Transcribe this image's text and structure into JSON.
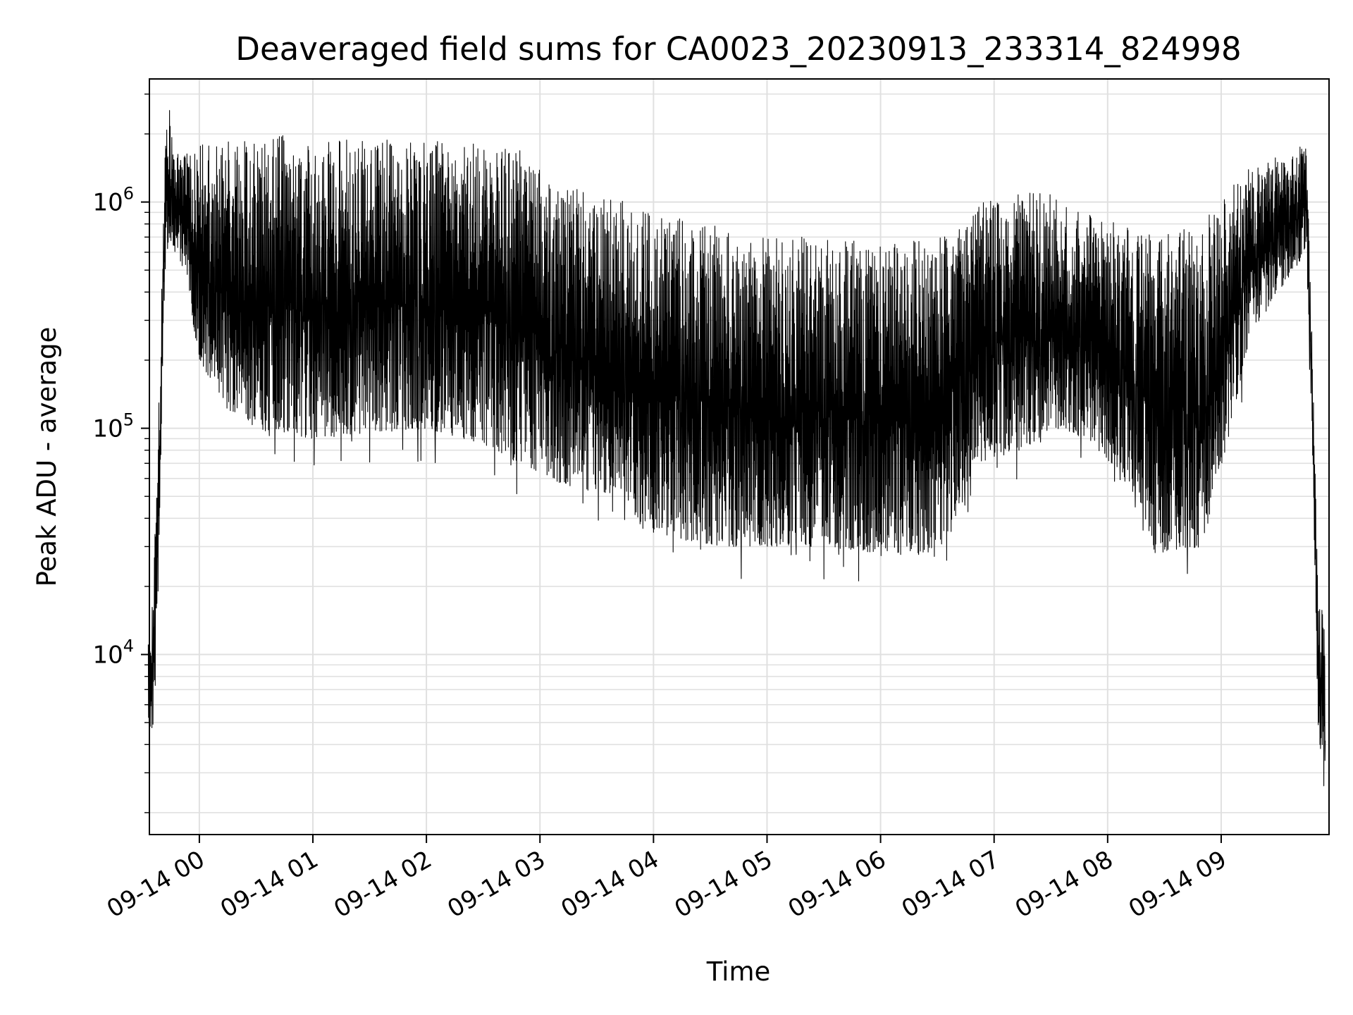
{
  "chart_data": {
    "type": "line",
    "title": "Deaveraged field sums for CA0023_20230913_233314_824998",
    "xlabel": "Time",
    "ylabel": "Peak ADU - average",
    "yscale": "log",
    "ylim": [
      1600,
      3500000
    ],
    "xlim_hours": [
      -0.44,
      9.95
    ],
    "grid": true,
    "legend": "none",
    "line_color": "#000000",
    "x_tick_labels": [
      "09-14 00",
      "09-14 01",
      "09-14 02",
      "09-14 03",
      "09-14 04",
      "09-14 05",
      "09-14 06",
      "09-14 07",
      "09-14 08",
      "09-14 09"
    ],
    "y_tick_base": "10",
    "y_tick_exponents": [
      "4",
      "5",
      "6"
    ],
    "series": [
      {
        "envelope": [
          {
            "t": "2023-09-13 23:33",
            "low": 5000,
            "high": 12000
          },
          {
            "t": "2023-09-13 23:36",
            "low": 4000,
            "high": 25000
          },
          {
            "t": "2023-09-13 23:38",
            "low": 15000,
            "high": 80000
          },
          {
            "t": "2023-09-13 23:40",
            "low": 100000,
            "high": 400000
          },
          {
            "t": "2023-09-13 23:42",
            "low": 500000,
            "high": 1800000
          },
          {
            "t": "2023-09-13 23:44",
            "low": 700000,
            "high": 2700000
          },
          {
            "t": "2023-09-13 23:47",
            "low": 600000,
            "high": 1600000
          },
          {
            "t": "2023-09-13 23:52",
            "low": 500000,
            "high": 1700000
          },
          {
            "t": "2023-09-14 00:00",
            "low": 200000,
            "high": 1800000
          },
          {
            "t": "2023-09-14 00:15",
            "low": 120000,
            "high": 1900000
          },
          {
            "t": "2023-09-14 00:30",
            "low": 100000,
            "high": 2000000
          },
          {
            "t": "2023-09-14 01:00",
            "low": 90000,
            "high": 1950000
          },
          {
            "t": "2023-09-14 01:30",
            "low": 95000,
            "high": 1900000
          },
          {
            "t": "2023-09-14 02:00",
            "low": 100000,
            "high": 1900000
          },
          {
            "t": "2023-09-14 02:30",
            "low": 85000,
            "high": 1850000
          },
          {
            "t": "2023-09-14 02:50",
            "low": 70000,
            "high": 1700000
          },
          {
            "t": "2023-09-14 03:15",
            "low": 55000,
            "high": 1200000
          },
          {
            "t": "2023-09-14 03:45",
            "low": 50000,
            "high": 1000000
          },
          {
            "t": "2023-09-14 03:55",
            "low": 35000,
            "high": 900000
          },
          {
            "t": "2023-09-14 04:30",
            "low": 30000,
            "high": 800000
          },
          {
            "t": "2023-09-14 05:00",
            "low": 30000,
            "high": 700000
          },
          {
            "t": "2023-09-14 05:30",
            "low": 30000,
            "high": 700000
          },
          {
            "t": "2023-09-14 06:00",
            "low": 28000,
            "high": 650000
          },
          {
            "t": "2023-09-14 06:30",
            "low": 27000,
            "high": 700000
          },
          {
            "t": "2023-09-14 06:50",
            "low": 70000,
            "high": 1000000
          },
          {
            "t": "2023-09-14 07:15",
            "low": 80000,
            "high": 1100000
          },
          {
            "t": "2023-09-14 07:30",
            "low": 100000,
            "high": 1100000
          },
          {
            "t": "2023-09-14 07:50",
            "low": 90000,
            "high": 900000
          },
          {
            "t": "2023-09-14 08:15",
            "low": 50000,
            "high": 800000
          },
          {
            "t": "2023-09-14 08:25",
            "low": 28000,
            "high": 700000
          },
          {
            "t": "2023-09-14 08:50",
            "low": 30000,
            "high": 800000
          },
          {
            "t": "2023-09-14 09:05",
            "low": 100000,
            "high": 1300000
          },
          {
            "t": "2023-09-14 09:15",
            "low": 250000,
            "high": 1400000
          },
          {
            "t": "2023-09-14 09:30",
            "low": 400000,
            "high": 1600000
          },
          {
            "t": "2023-09-14 09:45",
            "low": 600000,
            "high": 1800000
          },
          {
            "t": "2023-09-14 09:48",
            "low": 100000,
            "high": 250000
          },
          {
            "t": "2023-09-14 09:51",
            "low": 5000,
            "high": 25000
          },
          {
            "t": "2023-09-14 09:55",
            "low": 2200,
            "high": 12000
          }
        ]
      }
    ]
  }
}
